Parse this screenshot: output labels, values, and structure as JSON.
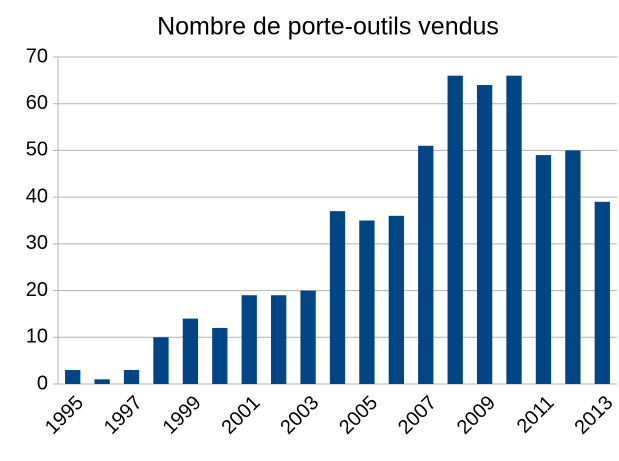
{
  "chart_data": {
    "type": "bar",
    "title": "Nombre de porte-outils vendus",
    "categories": [
      "1995",
      null,
      "1997",
      null,
      "1999",
      null,
      "2001",
      null,
      "2003",
      null,
      "2005",
      null,
      "2007",
      null,
      "2009",
      null,
      "2011",
      null,
      "2013"
    ],
    "values": [
      3,
      1,
      3,
      10,
      14,
      12,
      19,
      19,
      20,
      37,
      35,
      36,
      51,
      66,
      64,
      66,
      49,
      50,
      39
    ],
    "color": "#004586",
    "ylim": [
      0,
      70
    ],
    "yticks": [
      0,
      10,
      20,
      30,
      40,
      50,
      60,
      70
    ],
    "grid": true
  }
}
